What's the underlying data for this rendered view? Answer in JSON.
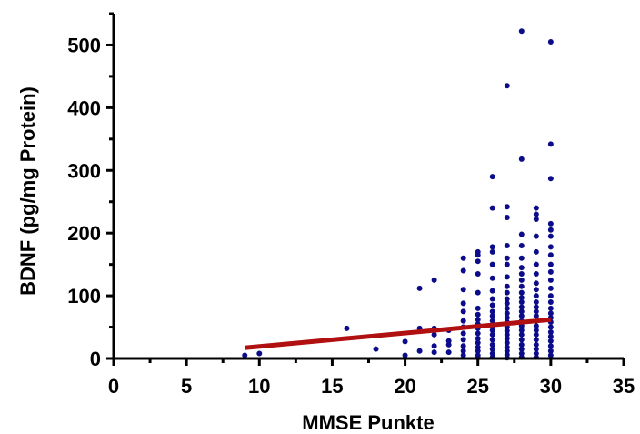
{
  "chart_data": {
    "type": "scatter",
    "title": "",
    "xlabel": "MMSE Punkte",
    "ylabel": "BDNF (pg/mg Protein)",
    "xlim": [
      0,
      35
    ],
    "ylim": [
      0,
      550
    ],
    "x_ticks": [
      "0",
      "5",
      "10",
      "15",
      "20",
      "25",
      "30",
      "35"
    ],
    "y_ticks": [
      "0",
      "100",
      "200",
      "300",
      "400",
      "500"
    ],
    "grid": false,
    "legend": "none",
    "colors": {
      "points": "#0c0c8a",
      "regression_line": "#b01010",
      "axis": "#000000"
    },
    "series": [
      {
        "points": [
          [
            9,
            5
          ],
          [
            10,
            8
          ],
          [
            16,
            48
          ],
          [
            18,
            15
          ],
          [
            20,
            27
          ],
          [
            20,
            5
          ],
          [
            21,
            112
          ],
          [
            21,
            48
          ],
          [
            21,
            12
          ],
          [
            22,
            125
          ],
          [
            22,
            48
          ],
          [
            22,
            38
          ],
          [
            22,
            20
          ],
          [
            22,
            10
          ],
          [
            23,
            45
          ],
          [
            23,
            28
          ],
          [
            23,
            22
          ],
          [
            23,
            10
          ],
          [
            24,
            160
          ],
          [
            24,
            140
          ],
          [
            24,
            110
          ],
          [
            24,
            88
          ],
          [
            24,
            75
          ],
          [
            24,
            60
          ],
          [
            24,
            50
          ],
          [
            24,
            40
          ],
          [
            24,
            30
          ],
          [
            24,
            20
          ],
          [
            24,
            12
          ],
          [
            24,
            5
          ],
          [
            25,
            170
          ],
          [
            25,
            165
          ],
          [
            25,
            155
          ],
          [
            25,
            135
          ],
          [
            25,
            105
          ],
          [
            25,
            80
          ],
          [
            25,
            70
          ],
          [
            25,
            62
          ],
          [
            25,
            55
          ],
          [
            25,
            48
          ],
          [
            25,
            40
          ],
          [
            25,
            32
          ],
          [
            25,
            25
          ],
          [
            25,
            18
          ],
          [
            25,
            12
          ],
          [
            25,
            5
          ],
          [
            25,
            1
          ],
          [
            26,
            290
          ],
          [
            26,
            240
          ],
          [
            26,
            178
          ],
          [
            26,
            170
          ],
          [
            26,
            150
          ],
          [
            26,
            128
          ],
          [
            26,
            108
          ],
          [
            26,
            95
          ],
          [
            26,
            85
          ],
          [
            26,
            75
          ],
          [
            26,
            68
          ],
          [
            26,
            60
          ],
          [
            26,
            52
          ],
          [
            26,
            45
          ],
          [
            26,
            38
          ],
          [
            26,
            30
          ],
          [
            26,
            22
          ],
          [
            26,
            15
          ],
          [
            26,
            8
          ],
          [
            26,
            2
          ],
          [
            27,
            435
          ],
          [
            27,
            242
          ],
          [
            27,
            225
          ],
          [
            27,
            180
          ],
          [
            27,
            160
          ],
          [
            27,
            150
          ],
          [
            27,
            130
          ],
          [
            27,
            115
          ],
          [
            27,
            105
          ],
          [
            27,
            95
          ],
          [
            27,
            88
          ],
          [
            27,
            80
          ],
          [
            27,
            72
          ],
          [
            27,
            65
          ],
          [
            27,
            58
          ],
          [
            27,
            50
          ],
          [
            27,
            44
          ],
          [
            27,
            38
          ],
          [
            27,
            32
          ],
          [
            27,
            25
          ],
          [
            27,
            18
          ],
          [
            27,
            12
          ],
          [
            27,
            6
          ],
          [
            27,
            1
          ],
          [
            28,
            522
          ],
          [
            28,
            318
          ],
          [
            28,
            198
          ],
          [
            28,
            180
          ],
          [
            28,
            160
          ],
          [
            28,
            145
          ],
          [
            28,
            135
          ],
          [
            28,
            125
          ],
          [
            28,
            115
          ],
          [
            28,
            105
          ],
          [
            28,
            97
          ],
          [
            28,
            90
          ],
          [
            28,
            82
          ],
          [
            28,
            75
          ],
          [
            28,
            68
          ],
          [
            28,
            60
          ],
          [
            28,
            52
          ],
          [
            28,
            45
          ],
          [
            28,
            38
          ],
          [
            28,
            30
          ],
          [
            28,
            22
          ],
          [
            28,
            15
          ],
          [
            28,
            8
          ],
          [
            28,
            2
          ],
          [
            29,
            240
          ],
          [
            29,
            230
          ],
          [
            29,
            222
          ],
          [
            29,
            195
          ],
          [
            29,
            170
          ],
          [
            29,
            150
          ],
          [
            29,
            135
          ],
          [
            29,
            120
          ],
          [
            29,
            110
          ],
          [
            29,
            100
          ],
          [
            29,
            90
          ],
          [
            29,
            82
          ],
          [
            29,
            75
          ],
          [
            29,
            68
          ],
          [
            29,
            60
          ],
          [
            29,
            52
          ],
          [
            29,
            45
          ],
          [
            29,
            38
          ],
          [
            29,
            30
          ],
          [
            29,
            22
          ],
          [
            29,
            15
          ],
          [
            29,
            8
          ],
          [
            29,
            2
          ],
          [
            30,
            505
          ],
          [
            30,
            342
          ],
          [
            30,
            287
          ],
          [
            30,
            215
          ],
          [
            30,
            205
          ],
          [
            30,
            195
          ],
          [
            30,
            178
          ],
          [
            30,
            165
          ],
          [
            30,
            150
          ],
          [
            30,
            138
          ],
          [
            30,
            125
          ],
          [
            30,
            112
          ],
          [
            30,
            100
          ],
          [
            30,
            90
          ],
          [
            30,
            80
          ],
          [
            30,
            72
          ],
          [
            30,
            65
          ],
          [
            30,
            58
          ],
          [
            30,
            50
          ],
          [
            30,
            42
          ],
          [
            30,
            35
          ],
          [
            30,
            28
          ],
          [
            30,
            20
          ],
          [
            30,
            12
          ],
          [
            30,
            5
          ]
        ]
      }
    ],
    "regression_line": {
      "x": [
        9,
        30
      ],
      "y": [
        17,
        62
      ]
    }
  }
}
